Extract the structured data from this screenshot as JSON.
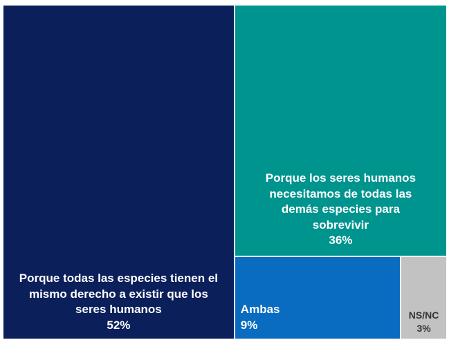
{
  "chart_data": {
    "type": "treemap",
    "categories": [
      "Porque todas las especies tienen el mismo derecho a existir que los seres humanos",
      "Porque los seres humanos necesitamos de todas las demás especies para sobrevivir",
      "Ambas",
      "NS/NC"
    ],
    "values": [
      52,
      36,
      9,
      3
    ],
    "value_labels": [
      "52%",
      "36%",
      "9%",
      "3%"
    ],
    "colors": [
      "#0b1f5b",
      "#00948f",
      "#0a6cc0",
      "#c2c2c2"
    ]
  }
}
